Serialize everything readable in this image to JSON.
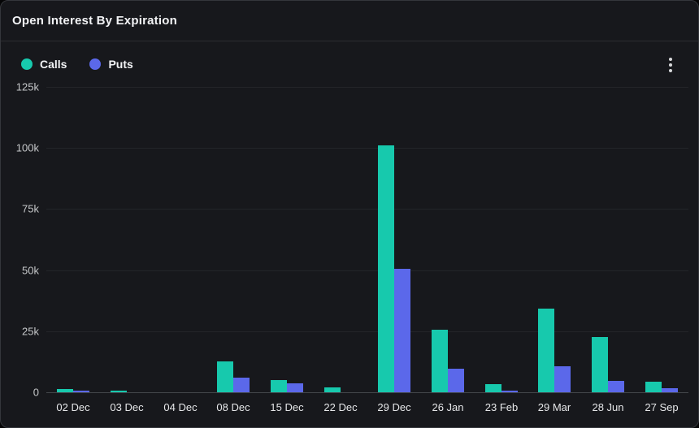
{
  "header": {
    "title": "Open Interest By Expiration"
  },
  "legend": {
    "calls_label": "Calls",
    "puts_label": "Puts",
    "calls_color": "#17c9ad",
    "puts_color": "#5b68ea"
  },
  "menu": {
    "kebab_icon": "vertical-three-dots"
  },
  "chart_data": {
    "type": "bar",
    "title": "Open Interest By Expiration",
    "categories": [
      "02 Dec",
      "03 Dec",
      "04 Dec",
      "08 Dec",
      "15 Dec",
      "22 Dec",
      "29 Dec",
      "26 Jan",
      "23 Feb",
      "29 Mar",
      "28 Jun",
      "27 Sep"
    ],
    "series": [
      {
        "name": "Calls",
        "color": "#17c9ad",
        "values": [
          1200,
          600,
          150,
          12700,
          5000,
          2100,
          101000,
          25700,
          3200,
          34300,
          22600,
          4400
        ]
      },
      {
        "name": "Puts",
        "color": "#5b68ea",
        "values": [
          700,
          100,
          80,
          6000,
          3500,
          200,
          50500,
          9800,
          600,
          10700,
          4600,
          1500
        ]
      }
    ],
    "xlabel": "",
    "ylabel": "",
    "ylim": [
      0,
      125000
    ],
    "ytick_labels": [
      "0",
      "25k",
      "50k",
      "75k",
      "100k",
      "125k"
    ],
    "ytick_values": [
      0,
      25000,
      50000,
      75000,
      100000,
      125000
    ],
    "grid": "horizontal",
    "legend_position": "top-left",
    "background": "#17181c"
  }
}
